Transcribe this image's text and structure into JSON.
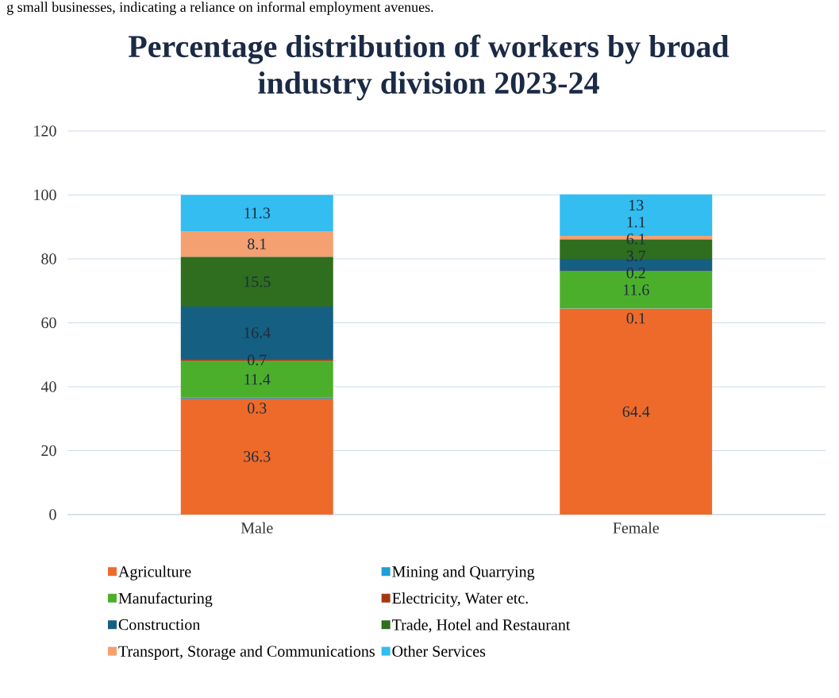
{
  "chart_data": {
    "type": "bar",
    "stacked": true,
    "title": "Percentage distribution of workers by broad industry division 2023-24",
    "annotations": [
      "g small businesses, indicating a reliance on informal employment avenues."
    ],
    "categories": [
      "Male",
      "Female"
    ],
    "series": [
      {
        "name": "Agriculture",
        "color": "#ee6a2a",
        "values": [
          36.3,
          64.4
        ]
      },
      {
        "name": "Mining and Quarrying",
        "color": "#1f9ed8",
        "values": [
          0.3,
          0.1
        ]
      },
      {
        "name": "Manufacturing",
        "color": "#4caf2c",
        "values": [
          11.4,
          11.6
        ]
      },
      {
        "name": "Electricity, Water etc.",
        "color": "#a33a10",
        "values": [
          0.7,
          0.2
        ]
      },
      {
        "name": "Construction",
        "color": "#155f82",
        "values": [
          16.4,
          3.7
        ]
      },
      {
        "name": "Trade, Hotel and Restaurant",
        "color": "#2e6e1e",
        "values": [
          15.5,
          6.1
        ]
      },
      {
        "name": "Transport, Storage and Communications",
        "color": "#f4a070",
        "values": [
          8.1,
          1.1
        ]
      },
      {
        "name": "Other Services",
        "color": "#33bdf0",
        "values": [
          11.3,
          13
        ]
      }
    ],
    "data_labels": true,
    "legend": "bottom",
    "grid": "y",
    "ylim": [
      0,
      120
    ],
    "yticks": [
      0,
      20,
      40,
      60,
      80,
      100,
      120
    ]
  }
}
